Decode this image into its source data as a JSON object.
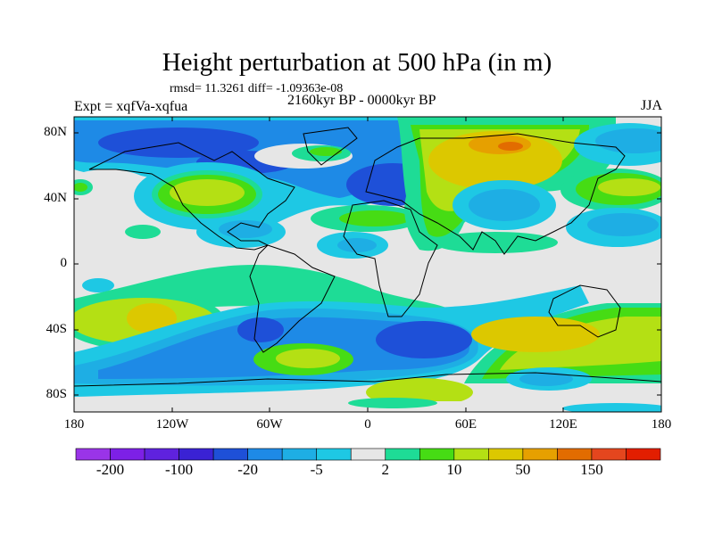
{
  "title": "Height perturbation at 500 hPa (in m)",
  "stats": "rmsd= 11.3261 diff= -1.09363e-08",
  "left_string": "Expt = xqfVa-xqfua",
  "center_string": "2160kyr BP - 0000kyr BP",
  "right_string": "JJA",
  "map": {
    "lat_labels": [
      "80N",
      "40N",
      "0",
      "40S",
      "80S"
    ],
    "lon_labels": [
      "180",
      "120W",
      "60W",
      "0",
      "60E",
      "120E",
      "180"
    ]
  },
  "colorbar": {
    "labels": [
      "-200",
      "-100",
      "-20",
      "-5",
      "2",
      "10",
      "50",
      "150"
    ],
    "colors": [
      "#9a34e8",
      "#7d20e6",
      "#5f22de",
      "#3a22d4",
      "#1e50d8",
      "#1e8ae6",
      "#1eaee4",
      "#1ec8e4",
      "#e6e6e6",
      "#1edc96",
      "#46dc14",
      "#b4e014",
      "#dcc800",
      "#e6a000",
      "#e26c00",
      "#e4461e",
      "#e21e00"
    ]
  }
}
